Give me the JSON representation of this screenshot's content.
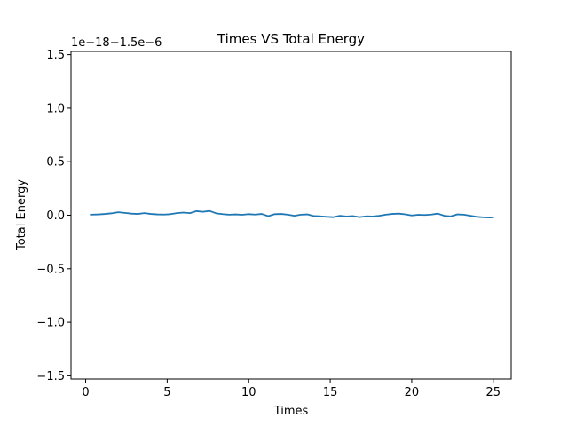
{
  "chart_data": {
    "type": "line",
    "title": "Times VS Total Energy",
    "xlabel": "Times",
    "ylabel": "Total Energy",
    "offset_text": "1e−18−1.5e−6",
    "xlim": [
      -0.9,
      26.1
    ],
    "ylim": [
      -1.53,
      1.53
    ],
    "xticks": [
      0,
      5,
      10,
      15,
      20,
      25
    ],
    "xtick_labels": [
      "0",
      "5",
      "10",
      "15",
      "20",
      "25"
    ],
    "yticks": [
      -1.5,
      -1.0,
      -0.5,
      0.0,
      0.5,
      1.0,
      1.5
    ],
    "ytick_labels": [
      "−1.5",
      "−1.0",
      "−0.5",
      "0.0",
      "0.5",
      "1.0",
      "1.5"
    ],
    "grid": false,
    "line_color": "#1f77b4",
    "series": [
      {
        "x": [
          0.3,
          0.8,
          1.2,
          1.6,
          2.0,
          2.4,
          2.8,
          3.2,
          3.6,
          4.0,
          4.4,
          4.8,
          5.2,
          5.6,
          6.0,
          6.4,
          6.8,
          7.2,
          7.6,
          8.0,
          8.4,
          8.8,
          9.2,
          9.6,
          10.0,
          10.4,
          10.8,
          11.2,
          11.6,
          12.0,
          12.4,
          12.8,
          13.2,
          13.6,
          14.0,
          14.4,
          14.8,
          15.2,
          15.6,
          16.0,
          16.4,
          16.8,
          17.2,
          17.6,
          18.0,
          18.4,
          18.8,
          19.2,
          19.6,
          20.0,
          20.4,
          20.8,
          21.2,
          21.6,
          22.0,
          22.4,
          22.8,
          23.2,
          23.6,
          24.0,
          24.4,
          24.8,
          25.0
        ],
        "y": [
          0.005,
          0.008,
          0.012,
          0.018,
          0.028,
          0.022,
          0.015,
          0.012,
          0.02,
          0.012,
          0.008,
          0.006,
          0.01,
          0.02,
          0.025,
          0.02,
          0.038,
          0.032,
          0.04,
          0.018,
          0.01,
          0.005,
          0.008,
          0.004,
          0.01,
          0.006,
          0.012,
          -0.008,
          0.01,
          0.012,
          0.005,
          -0.005,
          0.005,
          0.008,
          -0.008,
          -0.01,
          -0.015,
          -0.018,
          -0.005,
          -0.012,
          -0.008,
          -0.018,
          -0.01,
          -0.012,
          -0.005,
          0.005,
          0.012,
          0.015,
          0.008,
          -0.002,
          0.004,
          0.002,
          0.006,
          0.015,
          -0.005,
          -0.01,
          0.008,
          0.005,
          -0.005,
          -0.015,
          -0.02,
          -0.022,
          -0.02
        ]
      }
    ]
  }
}
